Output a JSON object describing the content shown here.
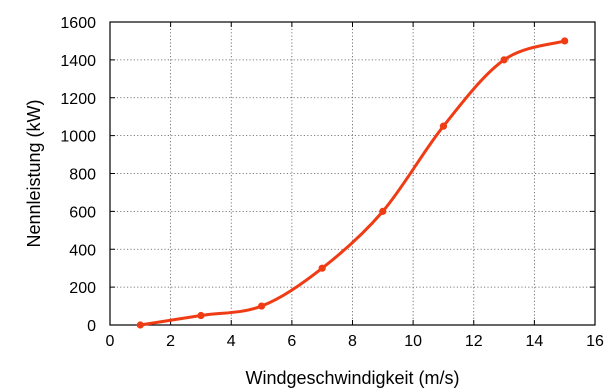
{
  "chart_data": {
    "type": "line",
    "title": "",
    "xlabel": "Windgeschwindigkeit (m/s)",
    "ylabel": "Nennleistung (kW)",
    "xlim": [
      0,
      16
    ],
    "ylim": [
      0,
      1600
    ],
    "xticks": [
      0,
      2,
      4,
      6,
      8,
      10,
      12,
      14,
      16
    ],
    "yticks": [
      0,
      200,
      400,
      600,
      800,
      1000,
      1200,
      1400,
      1600
    ],
    "grid": true,
    "grid_style": "dotted",
    "legend": "none",
    "series": [
      {
        "x": [
          1,
          3,
          5,
          7,
          9,
          11,
          13,
          15
        ],
        "values": [
          0,
          50,
          100,
          300,
          600,
          1050,
          1400,
          1500
        ],
        "color": "#f03c14",
        "marker": "circle",
        "smooth": true
      }
    ]
  }
}
